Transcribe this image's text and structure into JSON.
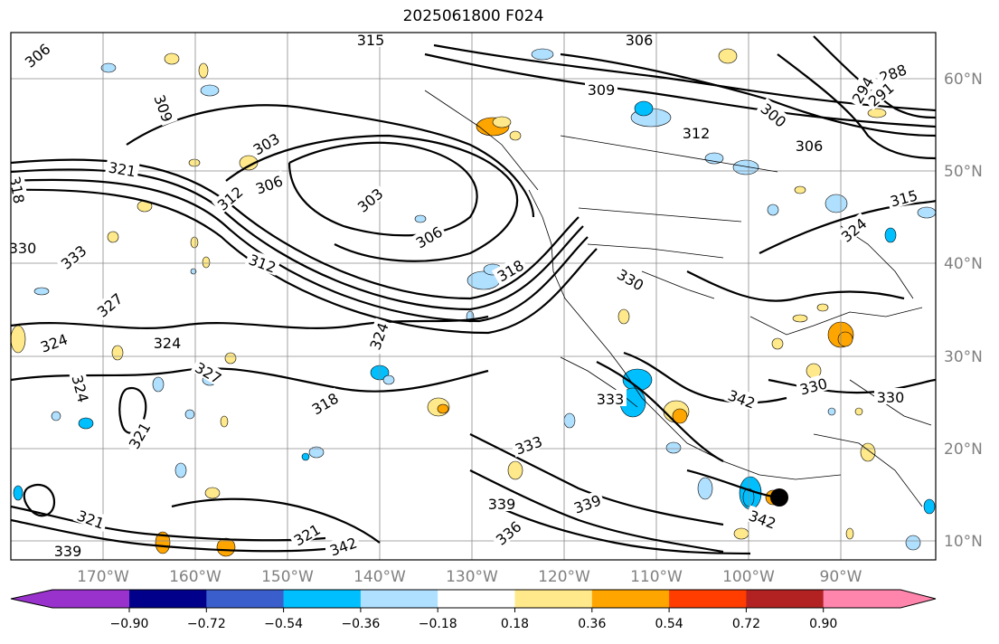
{
  "title": "2025061800 F024",
  "lat_labels": [
    "60°N",
    "50°N",
    "40°N",
    "30°N",
    "20°N",
    "10°N"
  ],
  "lon_labels": [
    "170°W",
    "160°W",
    "150°W",
    "140°W",
    "130°W",
    "120°W",
    "110°W",
    "100°W",
    "90°W"
  ],
  "colorbar": {
    "labels": [
      "−0.90",
      "−0.72",
      "−0.54",
      "−0.36",
      "−0.18",
      "0.18",
      "0.36",
      "0.54",
      "0.72",
      "0.90"
    ],
    "colors": [
      "#9932cc",
      "#00008b",
      "#3a5fcd",
      "#00bfff",
      "#b0e0ff",
      "#ffffff",
      "#ffe98a",
      "#ffa500",
      "#ff3d00",
      "#b22222",
      "#ff85ad"
    ]
  },
  "contour_labels": [
    "306",
    "315",
    "306",
    "309",
    "312",
    "300",
    "306",
    "309",
    "303",
    "306",
    "312",
    "303",
    "306",
    "321",
    "318",
    "312",
    "330",
    "333",
    "327",
    "318",
    "330",
    "324",
    "324",
    "324",
    "327",
    "324",
    "318",
    "321",
    "321",
    "333",
    "342",
    "330",
    "330",
    "333",
    "339",
    "339",
    "336",
    "342",
    "321",
    "339",
    "342",
    "315",
    "324",
    "288",
    "291",
    "294"
  ],
  "marker": "storm-center-dot"
}
